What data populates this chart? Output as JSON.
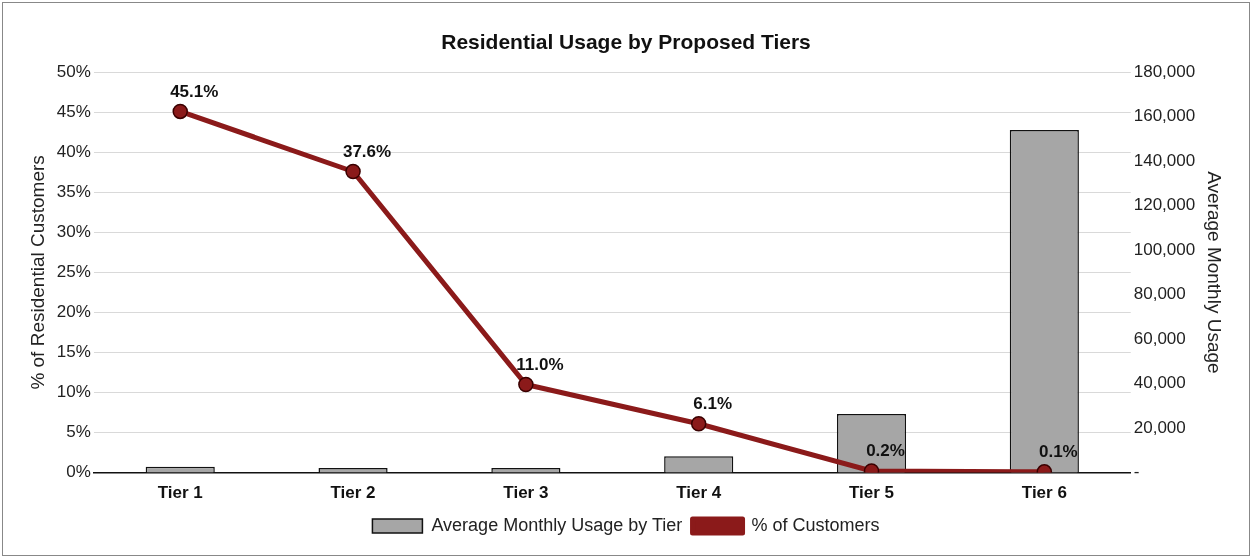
{
  "chart_data": {
    "type": "bar",
    "title": "Residential Usage by Proposed Tiers",
    "categories": [
      "Tier 1",
      "Tier 2",
      "Tier 3",
      "Tier 4",
      "Tier 5",
      "Tier 6"
    ],
    "series": [
      {
        "name": "Average Monthly Usage by Tier",
        "axis": "y2",
        "color": "#a6a6a6",
        "values": [
          2600,
          2100,
          2100,
          7300,
          26400,
          154000
        ]
      },
      {
        "name": "% of Customers",
        "type": "line",
        "axis": "y",
        "color": "#8b1a1a",
        "marker": "circle",
        "values": [
          45.1,
          37.6,
          11.0,
          6.1,
          0.2,
          0.1
        ],
        "value_labels": [
          "45.1%",
          "37.6%",
          "11.0%",
          "6.1%",
          "0.2%",
          "0.1%"
        ]
      }
    ],
    "ylabel": "% of Residential Customers",
    "y2label": "Average Monthly Usage",
    "ylim": [
      0,
      50
    ],
    "yticks": [
      {
        "value": 0,
        "label": "0%"
      },
      {
        "value": 5,
        "label": "5%"
      },
      {
        "value": 10,
        "label": "10%"
      },
      {
        "value": 15,
        "label": "15%"
      },
      {
        "value": 20,
        "label": "20%"
      },
      {
        "value": 25,
        "label": "25%"
      },
      {
        "value": 30,
        "label": "30%"
      },
      {
        "value": 35,
        "label": "35%"
      },
      {
        "value": 40,
        "label": "40%"
      },
      {
        "value": 45,
        "label": "45%"
      },
      {
        "value": 50,
        "label": "50%"
      }
    ],
    "y2lim": [
      0,
      180000
    ],
    "y2ticks": [
      {
        "value": 0,
        "label": "-"
      },
      {
        "value": 20000,
        "label": "20,000"
      },
      {
        "value": 40000,
        "label": "40,000"
      },
      {
        "value": 60000,
        "label": "60,000"
      },
      {
        "value": 80000,
        "label": "80,000"
      },
      {
        "value": 100000,
        "label": "100,000"
      },
      {
        "value": 120000,
        "label": "120,000"
      },
      {
        "value": 140000,
        "label": "140,000"
      },
      {
        "value": 160000,
        "label": "160,000"
      },
      {
        "value": 180000,
        "label": "180,000"
      }
    ],
    "grid": "y",
    "legend": "bottom"
  }
}
